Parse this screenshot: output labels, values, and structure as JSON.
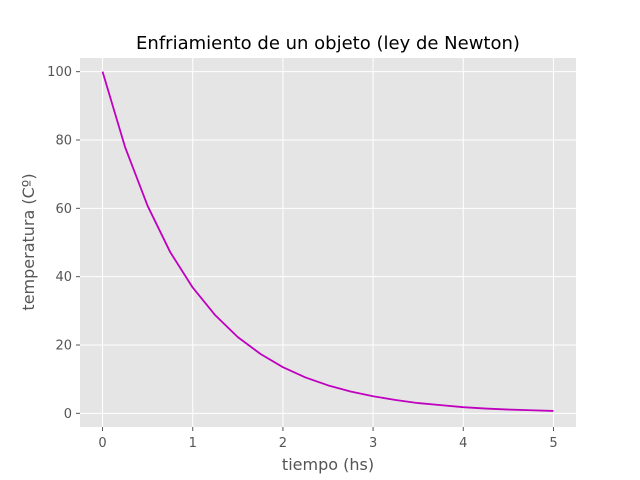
{
  "chart_data": {
    "type": "line",
    "title": "Enfriamiento de un objeto (ley de Newton)",
    "xlabel": "tiempo (hs)",
    "ylabel": "temperatura (Cº)",
    "xlim": [
      -0.25,
      5.25
    ],
    "ylim": [
      -4,
      104
    ],
    "xticks": [
      0,
      1,
      2,
      3,
      4,
      5
    ],
    "yticks": [
      0,
      20,
      40,
      60,
      80,
      100
    ],
    "grid": true,
    "background": "#e5e5e5",
    "gridColor": "#ffffff",
    "series": [
      {
        "color": "#bf00bf",
        "x": [
          0,
          0.25,
          0.5,
          0.75,
          1,
          1.25,
          1.5,
          1.75,
          2,
          2.25,
          2.5,
          2.75,
          3,
          3.25,
          3.5,
          3.75,
          4,
          4.25,
          4.5,
          4.75,
          5
        ],
        "y": [
          100,
          77.9,
          60.7,
          47.2,
          36.8,
          28.7,
          22.3,
          17.4,
          13.5,
          10.5,
          8.2,
          6.4,
          5.0,
          3.9,
          3.0,
          2.4,
          1.8,
          1.4,
          1.1,
          0.9,
          0.7
        ]
      }
    ]
  }
}
